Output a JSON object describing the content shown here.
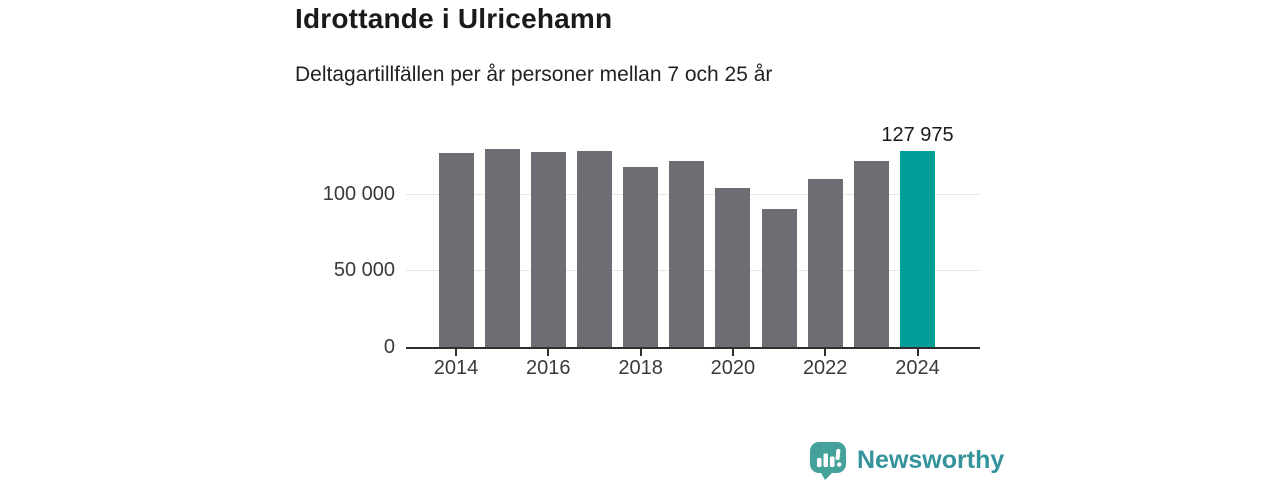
{
  "header": {
    "title": "Idrottande i Ulricehamn",
    "subtitle": "Deltagartillfällen per år personer mellan 7 och 25 år"
  },
  "chart_data": {
    "type": "bar",
    "title": "Idrottande i Ulricehamn",
    "subtitle": "Deltagartillfällen per år personer mellan 7 och 25 år",
    "categories": [
      2014,
      2015,
      2016,
      2017,
      2018,
      2019,
      2020,
      2021,
      2022,
      2023,
      2024
    ],
    "values": [
      126500,
      129300,
      127100,
      127800,
      117700,
      121600,
      103600,
      89900,
      109500,
      121000,
      127975
    ],
    "highlight_index": 10,
    "highlight_label": "127 975",
    "yticks": [
      0,
      50000,
      100000
    ],
    "ytick_labels": [
      "0",
      "50 000",
      "100 000"
    ],
    "xtick_years": [
      2014,
      2016,
      2018,
      2020,
      2022,
      2024
    ],
    "xtick_labels": [
      "2014",
      "2016",
      "2018",
      "2020",
      "2022",
      "2024"
    ],
    "ylim": [
      0,
      135000
    ],
    "grid": "horizontal",
    "legend": "none",
    "bar_color": "#6e6d74",
    "highlight_color": "#00a099",
    "axis_color": "#2f2f2f",
    "grid_color": "#e7e7e7",
    "tick_label_color": "#3a3a3a",
    "annotation_color": "#1a1a1a"
  },
  "footer": {
    "brand": "Newsworthy",
    "brand_color": "#35939b",
    "icon": "newsworthy-speech-bubble-barchart-icon",
    "icon_color": "#45a29b"
  }
}
